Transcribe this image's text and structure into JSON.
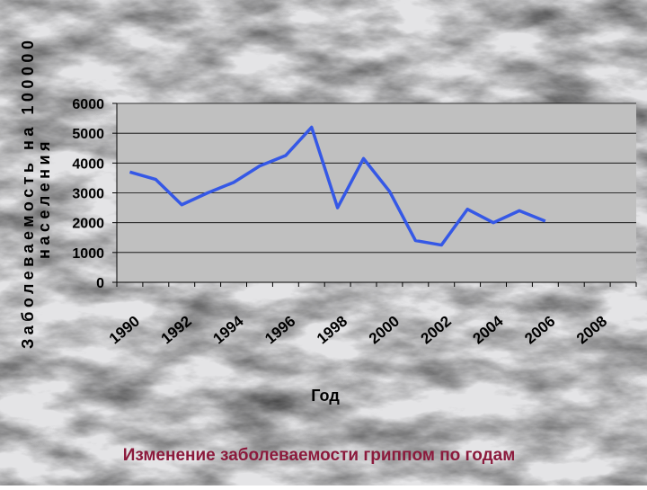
{
  "chart_data": {
    "type": "line",
    "title": "Изменение заболеваемости гриппом по годам",
    "xlabel": "Год",
    "ylabel_lines": [
      "Заболеваемость на 100000",
      "населения"
    ],
    "categories": [
      "1990",
      null,
      "1992",
      null,
      "1994",
      null,
      "1996",
      null,
      "1998",
      null,
      "2000",
      null,
      "2002",
      null,
      "2004",
      null,
      "2006",
      null,
      "2008",
      null
    ],
    "series": [
      {
        "color": "#3558e6",
        "values": [
          3700,
          3450,
          2600,
          3000,
          3350,
          3900,
          4250,
          5200,
          2500,
          4150,
          3050,
          1400,
          1250,
          2450,
          2000,
          2400,
          2050,
          null,
          null,
          null
        ]
      }
    ],
    "ylim": [
      0,
      6000
    ],
    "yticks": [
      0,
      1000,
      2000,
      3000,
      4000,
      5000,
      6000
    ],
    "grid": true
  }
}
